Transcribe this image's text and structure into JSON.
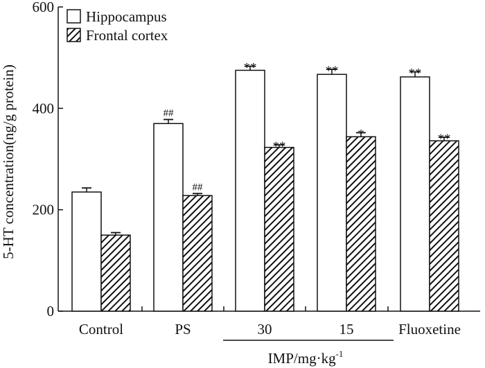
{
  "chart_data": {
    "type": "bar",
    "title": "",
    "ylabel": "5-HT concentration(ng/g protein)",
    "xlabel": "",
    "ylim": [
      0,
      600
    ],
    "yticks": [
      0,
      200,
      400,
      600
    ],
    "categories": [
      "Control",
      "PS",
      "30",
      "15",
      "Fluoxetine"
    ],
    "group_label": {
      "text": "IMP/mg·kg",
      "superscript": "-1",
      "spans_categories": [
        "30",
        "15"
      ]
    },
    "series": [
      {
        "name": "Hippocampus",
        "pattern": "solid-white",
        "values": [
          235,
          370,
          475,
          467,
          462
        ],
        "errors": [
          8,
          8,
          8,
          10,
          10
        ],
        "annotations": [
          "",
          "##",
          "**",
          "**",
          "**"
        ]
      },
      {
        "name": "Frontal cortex",
        "pattern": "diagonal-hatch",
        "values": [
          150,
          228,
          323,
          344,
          336
        ],
        "errors": [
          5,
          4,
          5,
          8,
          7
        ],
        "annotations": [
          "",
          "##",
          "**",
          "*",
          "**"
        ]
      }
    ],
    "legend": {
      "position": "top-left"
    },
    "grid": false
  }
}
